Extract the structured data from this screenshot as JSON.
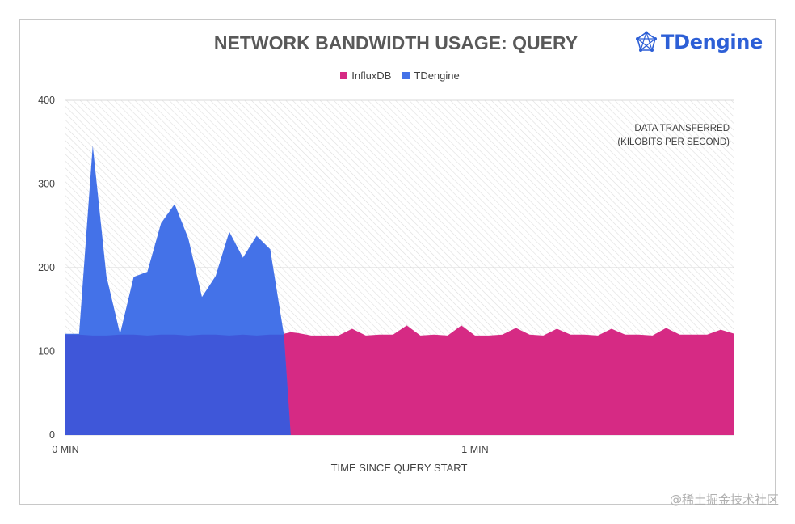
{
  "title": "NETWORK BANDWIDTH USAGE: QUERY",
  "logo": {
    "text": "TDengine",
    "icon": "tdengine-star-icon"
  },
  "watermark": "@稀土掘金技术社区",
  "annotation": [
    "DATA TRANSFERRED",
    "(KILOBITS PER SECOND)"
  ],
  "colors": {
    "influxdb": "#d62a84",
    "tdengine": "#4472e8",
    "overlap": "#3f57d9",
    "grid": "#d9d9d9",
    "hatch": "#dedede"
  },
  "chart_data": {
    "type": "area",
    "title": "NETWORK BANDWIDTH USAGE: QUERY",
    "xlabel": "TIME SINCE QUERY START",
    "ylabel": "",
    "ylim": [
      0,
      400
    ],
    "xlim_seconds": [
      0,
      98
    ],
    "yticks": [
      0,
      100,
      200,
      300,
      400
    ],
    "xticks": [
      {
        "value": 0,
        "label": "0 MIN"
      },
      {
        "value": 60,
        "label": "1 MIN"
      }
    ],
    "grid": true,
    "legend_position": "top",
    "series": [
      {
        "name": "InfluxDB",
        "color": "#d62a84",
        "x": [
          0,
          2,
          4,
          6,
          8,
          10,
          12,
          14,
          16,
          18,
          20,
          22,
          24,
          26,
          28,
          30,
          32,
          33,
          34,
          36,
          38,
          40,
          42,
          44,
          46,
          48,
          50,
          52,
          54,
          56,
          58,
          60,
          62,
          64,
          66,
          68,
          70,
          72,
          74,
          76,
          78,
          80,
          82,
          84,
          86,
          88,
          90,
          92,
          94,
          96,
          98
        ],
        "values": [
          120,
          120,
          119,
          119,
          120,
          120,
          119,
          120,
          120,
          119,
          120,
          120,
          119,
          120,
          119,
          120,
          121,
          123,
          122,
          119,
          119,
          119,
          127,
          119,
          120,
          120,
          131,
          119,
          120,
          119,
          131,
          119,
          119,
          120,
          128,
          120,
          119,
          127,
          120,
          120,
          119,
          127,
          120,
          120,
          119,
          128,
          120,
          120,
          120,
          126,
          121
        ]
      },
      {
        "name": "TDengine",
        "color": "#4472e8",
        "x": [
          0,
          2,
          4,
          6,
          8,
          10,
          12,
          14,
          16,
          18,
          20,
          22,
          24,
          26,
          28,
          30,
          32,
          33
        ],
        "values": [
          121,
          121,
          346,
          190,
          121,
          189,
          195,
          253,
          276,
          235,
          165,
          190,
          243,
          212,
          238,
          222,
          120,
          0
        ]
      }
    ]
  }
}
